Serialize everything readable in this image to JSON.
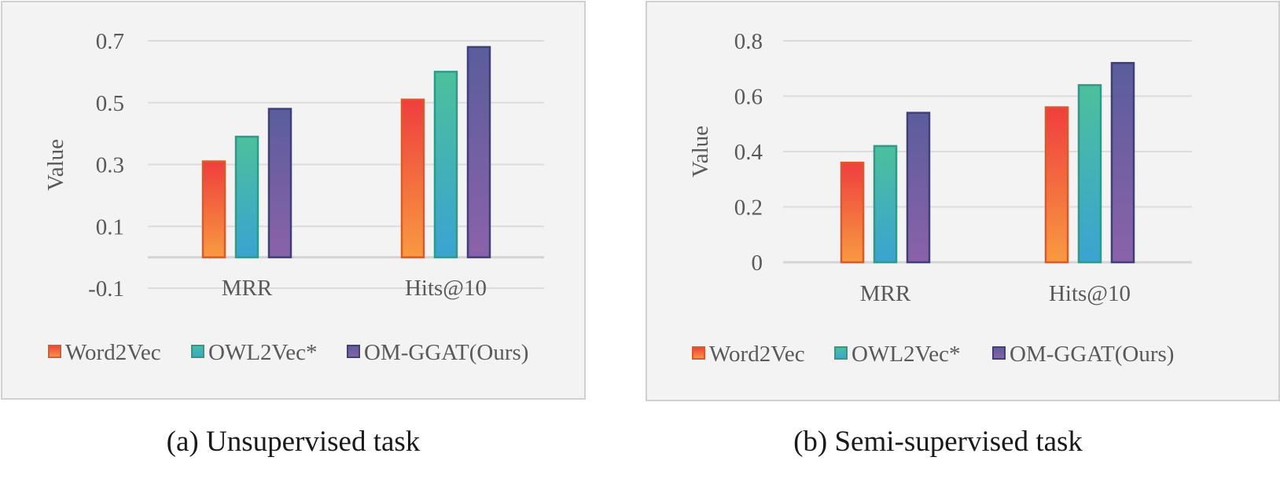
{
  "colors": {
    "panel_bg": "#f3f3f3",
    "panel_border": "#d0d0d0",
    "grid": "#dcdcdc",
    "axis_line": "#d4d4d4",
    "text": "#595959",
    "series": [
      {
        "top": "#ef3e3e",
        "bottom": "#f89a40",
        "stroke": "#d95b2b"
      },
      {
        "top": "#4cc09c",
        "bottom": "#3aa3d2",
        "stroke": "#2e9a87"
      },
      {
        "top": "#5a5d9c",
        "bottom": "#8b62a9",
        "stroke": "#3f3f7a"
      }
    ]
  },
  "chart_data": [
    {
      "type": "bar",
      "caption": "(a) Unsupervised task",
      "ylabel": "Value",
      "categories": [
        "MRR",
        "Hits@10"
      ],
      "series": [
        {
          "name": "Word2Vec",
          "values": [
            0.31,
            0.51
          ]
        },
        {
          "name": "OWL2Vec*",
          "values": [
            0.39,
            0.6
          ]
        },
        {
          "name": "OM-GGAT(Ours)",
          "values": [
            0.48,
            0.68
          ]
        }
      ],
      "ylim": [
        -0.1,
        0.7
      ],
      "yticks": [
        0.7,
        0.5,
        0.3,
        0.1,
        -0.1
      ],
      "ytick_labels": [
        "0.7",
        "0.5",
        "0.3",
        "0.1",
        "-0.1"
      ],
      "baseline": 0,
      "legend": "bottom",
      "grid": true
    },
    {
      "type": "bar",
      "caption": "(b) Semi-supervised task",
      "ylabel": "Value",
      "categories": [
        "MRR",
        "Hits@10"
      ],
      "series": [
        {
          "name": "Word2Vec",
          "values": [
            0.36,
            0.56
          ]
        },
        {
          "name": "OWL2Vec*",
          "values": [
            0.42,
            0.64
          ]
        },
        {
          "name": "OM-GGAT(Ours)",
          "values": [
            0.54,
            0.72
          ]
        }
      ],
      "ylim": [
        0,
        0.8
      ],
      "yticks": [
        0.8,
        0.6,
        0.4,
        0.2,
        0
      ],
      "ytick_labels": [
        "0.8",
        "0.6",
        "0.4",
        "0.2",
        "0"
      ],
      "baseline": 0,
      "legend": "bottom",
      "grid": true
    }
  ]
}
